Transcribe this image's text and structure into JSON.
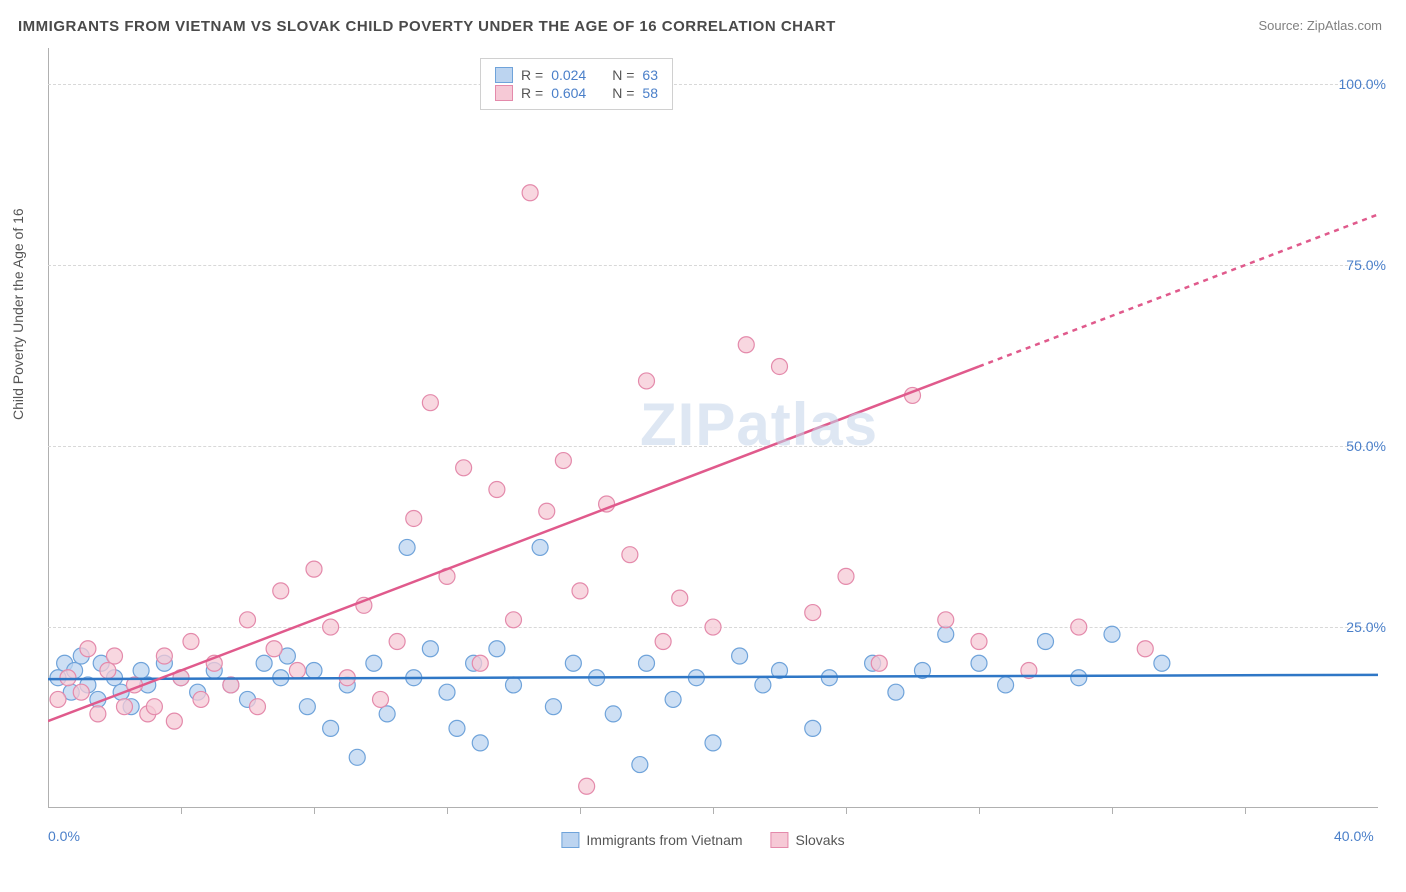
{
  "title": "IMMIGRANTS FROM VIETNAM VS SLOVAK CHILD POVERTY UNDER THE AGE OF 16 CORRELATION CHART",
  "source": "Source: ZipAtlas.com",
  "y_axis_label": "Child Poverty Under the Age of 16",
  "watermark": {
    "bold": "ZIP",
    "light": "atlas"
  },
  "chart": {
    "type": "scatter",
    "xlim": [
      0,
      40
    ],
    "ylim": [
      0,
      105
    ],
    "x_ticks": [
      0,
      40
    ],
    "x_tick_labels": [
      "0.0%",
      "40.0%"
    ],
    "x_minor_ticks": [
      4,
      8,
      12,
      16,
      20,
      24,
      28,
      32,
      36
    ],
    "y_ticks": [
      25,
      50,
      75,
      100
    ],
    "y_tick_labels": [
      "25.0%",
      "50.0%",
      "75.0%",
      "100.0%"
    ],
    "grid_color": "#d8d8d8",
    "background_color": "#ffffff",
    "series": [
      {
        "name": "Immigrants from Vietnam",
        "color_fill": "#bcd4f0",
        "color_stroke": "#6fa3da",
        "marker_radius": 8,
        "R": "0.024",
        "N": "63",
        "trend": {
          "x1": 0,
          "y1": 17.8,
          "x2": 40,
          "y2": 18.4,
          "solid_until_x": 40,
          "color": "#2f77c6",
          "width": 2.5
        },
        "points": [
          [
            0.3,
            18
          ],
          [
            0.5,
            20
          ],
          [
            0.7,
            16
          ],
          [
            0.8,
            19
          ],
          [
            1.0,
            21
          ],
          [
            1.2,
            17
          ],
          [
            1.5,
            15
          ],
          [
            1.6,
            20
          ],
          [
            2.0,
            18
          ],
          [
            2.2,
            16
          ],
          [
            2.5,
            14
          ],
          [
            2.8,
            19
          ],
          [
            3.0,
            17
          ],
          [
            3.5,
            20
          ],
          [
            4.0,
            18
          ],
          [
            4.5,
            16
          ],
          [
            5.0,
            19
          ],
          [
            5.5,
            17
          ],
          [
            6.0,
            15
          ],
          [
            6.5,
            20
          ],
          [
            7.0,
            18
          ],
          [
            7.2,
            21
          ],
          [
            7.8,
            14
          ],
          [
            8.0,
            19
          ],
          [
            8.5,
            11
          ],
          [
            9.0,
            17
          ],
          [
            9.3,
            7
          ],
          [
            9.8,
            20
          ],
          [
            10.2,
            13
          ],
          [
            10.8,
            36
          ],
          [
            11.0,
            18
          ],
          [
            11.5,
            22
          ],
          [
            12.0,
            16
          ],
          [
            12.3,
            11
          ],
          [
            12.8,
            20
          ],
          [
            13.0,
            9
          ],
          [
            13.5,
            22
          ],
          [
            14.0,
            17
          ],
          [
            14.8,
            36
          ],
          [
            15.2,
            14
          ],
          [
            15.8,
            20
          ],
          [
            16.5,
            18
          ],
          [
            17.0,
            13
          ],
          [
            17.8,
            6
          ],
          [
            18.0,
            20
          ],
          [
            18.8,
            15
          ],
          [
            19.5,
            18
          ],
          [
            20.0,
            9
          ],
          [
            20.8,
            21
          ],
          [
            21.5,
            17
          ],
          [
            22.0,
            19
          ],
          [
            23.0,
            11
          ],
          [
            23.5,
            18
          ],
          [
            24.8,
            20
          ],
          [
            25.5,
            16
          ],
          [
            26.3,
            19
          ],
          [
            27.0,
            24
          ],
          [
            28.0,
            20
          ],
          [
            28.8,
            17
          ],
          [
            30.0,
            23
          ],
          [
            31.0,
            18
          ],
          [
            32.0,
            24
          ],
          [
            33.5,
            20
          ]
        ]
      },
      {
        "name": "Slovaks",
        "color_fill": "#f6c9d6",
        "color_stroke": "#e48aab",
        "marker_radius": 8,
        "R": "0.604",
        "N": "58",
        "trend": {
          "x1": 0,
          "y1": 12,
          "x2": 40,
          "y2": 82,
          "solid_until_x": 28,
          "color": "#e05a8c",
          "width": 2.5
        },
        "points": [
          [
            0.3,
            15
          ],
          [
            0.6,
            18
          ],
          [
            1.0,
            16
          ],
          [
            1.2,
            22
          ],
          [
            1.5,
            13
          ],
          [
            1.8,
            19
          ],
          [
            2.0,
            21
          ],
          [
            2.3,
            14
          ],
          [
            2.6,
            17
          ],
          [
            3.0,
            13
          ],
          [
            3.2,
            14
          ],
          [
            3.5,
            21
          ],
          [
            3.8,
            12
          ],
          [
            4.0,
            18
          ],
          [
            4.3,
            23
          ],
          [
            4.6,
            15
          ],
          [
            5.0,
            20
          ],
          [
            5.5,
            17
          ],
          [
            6.0,
            26
          ],
          [
            6.3,
            14
          ],
          [
            6.8,
            22
          ],
          [
            7.0,
            30
          ],
          [
            7.5,
            19
          ],
          [
            8.0,
            33
          ],
          [
            8.5,
            25
          ],
          [
            9.0,
            18
          ],
          [
            9.5,
            28
          ],
          [
            10.0,
            15
          ],
          [
            10.5,
            23
          ],
          [
            11.0,
            40
          ],
          [
            11.5,
            56
          ],
          [
            12.0,
            32
          ],
          [
            12.5,
            47
          ],
          [
            13.0,
            20
          ],
          [
            13.5,
            44
          ],
          [
            14.0,
            26
          ],
          [
            14.5,
            85
          ],
          [
            15.0,
            41
          ],
          [
            15.5,
            48
          ],
          [
            16.0,
            30
          ],
          [
            16.2,
            3
          ],
          [
            16.8,
            42
          ],
          [
            17.5,
            35
          ],
          [
            18.0,
            59
          ],
          [
            18.5,
            23
          ],
          [
            19.0,
            29
          ],
          [
            20.0,
            25
          ],
          [
            21.0,
            64
          ],
          [
            22.0,
            61
          ],
          [
            23.0,
            27
          ],
          [
            24.0,
            32
          ],
          [
            25.0,
            20
          ],
          [
            26.0,
            57
          ],
          [
            27.0,
            26
          ],
          [
            28.0,
            23
          ],
          [
            29.5,
            19
          ],
          [
            31.0,
            25
          ],
          [
            33.0,
            22
          ]
        ]
      }
    ]
  },
  "legend_top": {
    "rows": [
      {
        "swatch_fill": "#bcd4f0",
        "swatch_stroke": "#6fa3da",
        "R_lbl": "R =",
        "R": "0.024",
        "N_lbl": "N =",
        "N": "63"
      },
      {
        "swatch_fill": "#f6c9d6",
        "swatch_stroke": "#e48aab",
        "R_lbl": "R =",
        "R": "0.604",
        "N_lbl": "N =",
        "N": "58"
      }
    ]
  },
  "legend_bottom": [
    {
      "swatch_fill": "#bcd4f0",
      "swatch_stroke": "#6fa3da",
      "label": "Immigrants from Vietnam"
    },
    {
      "swatch_fill": "#f6c9d6",
      "swatch_stroke": "#e48aab",
      "label": "Slovaks"
    }
  ]
}
